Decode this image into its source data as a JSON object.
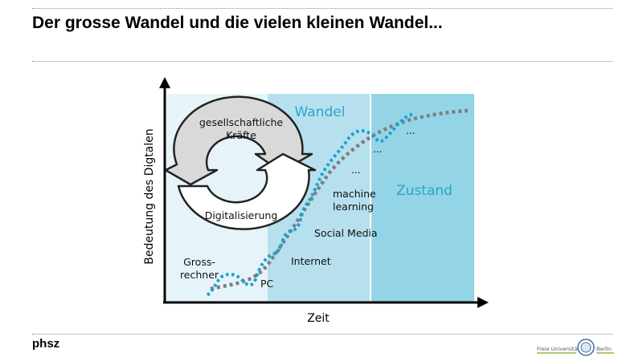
{
  "slide": {
    "title": "Der grosse Wandel und die vielen kleinen Wandel...",
    "footer_label": "phsz",
    "logo_text_left": "Freie Universität",
    "logo_text_right": "Berlin"
  },
  "diagram": {
    "y_axis_label": "Bedeutung des Digtalen",
    "x_axis_label": "Zeit",
    "zones": [
      {
        "label": "",
        "color": "#e6f4fa"
      },
      {
        "label": "Wandel",
        "color": "#b6e0ee"
      },
      {
        "label": "Zustand",
        "color": "#93d5e7"
      }
    ],
    "cycle": {
      "top_label_line1": "gesellschaftliche",
      "top_label_line2": "Kräfte",
      "bottom_label": "Digitalisierung"
    },
    "milestones": {
      "grossrechner_line1": "Gross-",
      "grossrechner_line2": "rechner",
      "pc": "PC",
      "internet": "Internet",
      "social_media": "Social Media",
      "ml_line1": "machine",
      "ml_line2": "learning",
      "ellipsis_1": "...",
      "ellipsis_2": "...",
      "ellipsis_3": "..."
    },
    "colors": {
      "trend_line": "#7f7f7f",
      "detail_line": "#1ba3cf",
      "label_blue": "#29a3cc",
      "axis": "#000000",
      "cycle_top_fill": "#d9d9d9",
      "cycle_bottom_fill": "#ffffff",
      "cycle_stroke": "#222222"
    }
  }
}
